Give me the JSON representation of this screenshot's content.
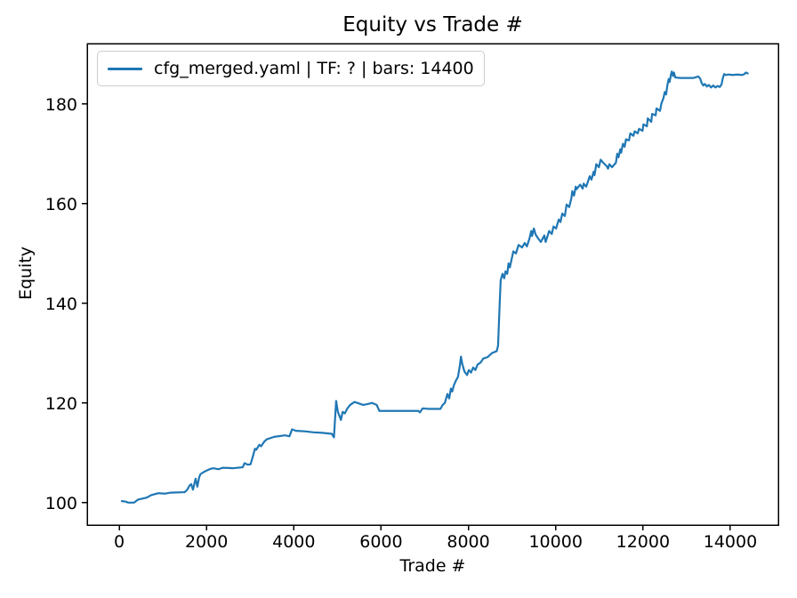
{
  "figure": {
    "background": "#ffffff"
  },
  "chart_data": {
    "type": "line",
    "title": "Equity vs Trade #",
    "xlabel": "Trade #",
    "ylabel": "Equity",
    "x_ticks": [
      0,
      2000,
      4000,
      6000,
      8000,
      10000,
      12000,
      14000
    ],
    "y_ticks": [
      100,
      120,
      140,
      160,
      180
    ],
    "xlim": [
      -734,
      15101
    ],
    "ylim": [
      95.5,
      192.1
    ],
    "grid": false,
    "axis_color": "#000000",
    "legend": {
      "position": "upper-left",
      "entries": [
        {
          "label": "cfg_merged.yaml | TF: ? | bars: 14400",
          "color": "#1f77b4"
        }
      ]
    },
    "series": [
      {
        "name": "cfg_merged.yaml | TF: ? | bars: 14400",
        "color": "#1f77b4",
        "points": [
          [
            60,
            100.3
          ],
          [
            150,
            100.2
          ],
          [
            200,
            100.0
          ],
          [
            340,
            100.0
          ],
          [
            430,
            100.6
          ],
          [
            630,
            101.0
          ],
          [
            730,
            101.5
          ],
          [
            900,
            101.9
          ],
          [
            1050,
            101.8
          ],
          [
            1180,
            102.0
          ],
          [
            1500,
            102.1
          ],
          [
            1560,
            102.6
          ],
          [
            1610,
            103.4
          ],
          [
            1650,
            103.7
          ],
          [
            1690,
            102.6
          ],
          [
            1750,
            104.8
          ],
          [
            1790,
            103.2
          ],
          [
            1830,
            105.0
          ],
          [
            1860,
            105.7
          ],
          [
            1950,
            106.2
          ],
          [
            2020,
            106.5
          ],
          [
            2100,
            106.8
          ],
          [
            2160,
            106.9
          ],
          [
            2280,
            106.7
          ],
          [
            2370,
            107.0
          ],
          [
            2600,
            106.9
          ],
          [
            2830,
            107.1
          ],
          [
            2870,
            107.9
          ],
          [
            2950,
            107.6
          ],
          [
            3010,
            107.7
          ],
          [
            3060,
            109.2
          ],
          [
            3110,
            110.8
          ],
          [
            3140,
            110.6
          ],
          [
            3210,
            111.6
          ],
          [
            3250,
            111.3
          ],
          [
            3320,
            112.2
          ],
          [
            3380,
            112.7
          ],
          [
            3550,
            113.2
          ],
          [
            3800,
            113.5
          ],
          [
            3900,
            113.3
          ],
          [
            3960,
            114.7
          ],
          [
            4050,
            114.4
          ],
          [
            4250,
            114.3
          ],
          [
            4450,
            114.1
          ],
          [
            4650,
            114.0
          ],
          [
            4870,
            113.8
          ],
          [
            4920,
            113.1
          ],
          [
            4970,
            120.4
          ],
          [
            5010,
            118.2
          ],
          [
            5050,
            117.3
          ],
          [
            5080,
            116.6
          ],
          [
            5120,
            118.2
          ],
          [
            5170,
            117.9
          ],
          [
            5220,
            118.8
          ],
          [
            5290,
            119.6
          ],
          [
            5390,
            120.2
          ],
          [
            5490,
            119.9
          ],
          [
            5590,
            119.6
          ],
          [
            5700,
            119.8
          ],
          [
            5790,
            120.0
          ],
          [
            5900,
            119.6
          ],
          [
            5960,
            118.4
          ],
          [
            6300,
            118.4
          ],
          [
            6850,
            118.4
          ],
          [
            6890,
            118.1
          ],
          [
            6950,
            118.9
          ],
          [
            7100,
            118.8
          ],
          [
            7360,
            118.8
          ],
          [
            7410,
            119.6
          ],
          [
            7460,
            120.0
          ],
          [
            7520,
            121.8
          ],
          [
            7560,
            120.9
          ],
          [
            7600,
            122.9
          ],
          [
            7630,
            122.3
          ],
          [
            7670,
            123.6
          ],
          [
            7710,
            124.4
          ],
          [
            7760,
            125.2
          ],
          [
            7800,
            127.2
          ],
          [
            7830,
            129.3
          ],
          [
            7860,
            127.8
          ],
          [
            7910,
            126.3
          ],
          [
            7970,
            125.6
          ],
          [
            8010,
            126.6
          ],
          [
            8060,
            126.1
          ],
          [
            8110,
            127.1
          ],
          [
            8160,
            126.6
          ],
          [
            8210,
            127.7
          ],
          [
            8280,
            128.1
          ],
          [
            8340,
            128.9
          ],
          [
            8440,
            129.2
          ],
          [
            8540,
            130.0
          ],
          [
            8650,
            130.4
          ],
          [
            8680,
            131.5
          ],
          [
            8700,
            136.0
          ],
          [
            8720,
            140.5
          ],
          [
            8740,
            144.6
          ],
          [
            8780,
            145.9
          ],
          [
            8820,
            145.0
          ],
          [
            8850,
            146.4
          ],
          [
            8890,
            145.9
          ],
          [
            8920,
            148.0
          ],
          [
            8950,
            147.2
          ],
          [
            8990,
            148.8
          ],
          [
            9030,
            150.4
          ],
          [
            9090,
            150.0
          ],
          [
            9150,
            151.7
          ],
          [
            9230,
            151.2
          ],
          [
            9290,
            152.1
          ],
          [
            9340,
            151.4
          ],
          [
            9400,
            153.0
          ],
          [
            9440,
            154.5
          ],
          [
            9460,
            153.5
          ],
          [
            9500,
            155.0
          ],
          [
            9540,
            153.8
          ],
          [
            9600,
            153.0
          ],
          [
            9660,
            152.3
          ],
          [
            9740,
            153.6
          ],
          [
            9770,
            152.3
          ],
          [
            9850,
            154.5
          ],
          [
            9910,
            153.9
          ],
          [
            9950,
            155.4
          ],
          [
            10010,
            155.0
          ],
          [
            10070,
            156.8
          ],
          [
            10110,
            156.3
          ],
          [
            10150,
            158.0
          ],
          [
            10210,
            157.5
          ],
          [
            10250,
            159.8
          ],
          [
            10310,
            159.3
          ],
          [
            10360,
            161.1
          ],
          [
            10380,
            162.5
          ],
          [
            10420,
            161.6
          ],
          [
            10460,
            163.4
          ],
          [
            10480,
            162.9
          ],
          [
            10560,
            163.8
          ],
          [
            10620,
            163.0
          ],
          [
            10640,
            164.0
          ],
          [
            10700,
            163.4
          ],
          [
            10780,
            165.5
          ],
          [
            10820,
            164.8
          ],
          [
            10870,
            166.4
          ],
          [
            10890,
            165.7
          ],
          [
            10930,
            167.9
          ],
          [
            10990,
            167.3
          ],
          [
            11030,
            168.8
          ],
          [
            11090,
            168.2
          ],
          [
            11170,
            167.5
          ],
          [
            11200,
            167.0
          ],
          [
            11230,
            167.9
          ],
          [
            11290,
            167.3
          ],
          [
            11380,
            168.2
          ],
          [
            11410,
            170.0
          ],
          [
            11440,
            169.3
          ],
          [
            11480,
            170.9
          ],
          [
            11500,
            170.2
          ],
          [
            11540,
            172.0
          ],
          [
            11580,
            171.4
          ],
          [
            11610,
            172.9
          ],
          [
            11680,
            172.7
          ],
          [
            11710,
            174.1
          ],
          [
            11780,
            173.6
          ],
          [
            11810,
            174.5
          ],
          [
            11880,
            174.1
          ],
          [
            11910,
            175.0
          ],
          [
            11990,
            174.6
          ],
          [
            12010,
            175.9
          ],
          [
            12090,
            175.5
          ],
          [
            12110,
            177.1
          ],
          [
            12190,
            176.4
          ],
          [
            12210,
            178.0
          ],
          [
            12290,
            177.7
          ],
          [
            12310,
            179.1
          ],
          [
            12390,
            178.6
          ],
          [
            12420,
            180.0
          ],
          [
            12470,
            181.2
          ],
          [
            12500,
            182.4
          ],
          [
            12530,
            181.9
          ],
          [
            12560,
            183.8
          ],
          [
            12590,
            185.0
          ],
          [
            12610,
            184.4
          ],
          [
            12640,
            185.8
          ],
          [
            12660,
            186.5
          ],
          [
            12690,
            185.6
          ],
          [
            12710,
            186.3
          ],
          [
            12740,
            185.3
          ],
          [
            12850,
            185.2
          ],
          [
            13000,
            185.2
          ],
          [
            13150,
            185.2
          ],
          [
            13270,
            185.5
          ],
          [
            13310,
            185.1
          ],
          [
            13340,
            184.3
          ],
          [
            13380,
            183.7
          ],
          [
            13420,
            184.0
          ],
          [
            13460,
            183.5
          ],
          [
            13510,
            183.8
          ],
          [
            13560,
            183.3
          ],
          [
            13610,
            183.7
          ],
          [
            13660,
            183.3
          ],
          [
            13710,
            183.6
          ],
          [
            13760,
            183.4
          ],
          [
            13800,
            183.9
          ],
          [
            13830,
            185.2
          ],
          [
            13860,
            186.0
          ],
          [
            13900,
            185.8
          ],
          [
            13960,
            185.9
          ],
          [
            14060,
            185.8
          ],
          [
            14160,
            185.9
          ],
          [
            14260,
            185.8
          ],
          [
            14310,
            185.9
          ],
          [
            14360,
            186.3
          ],
          [
            14400,
            186.1
          ]
        ]
      }
    ]
  }
}
